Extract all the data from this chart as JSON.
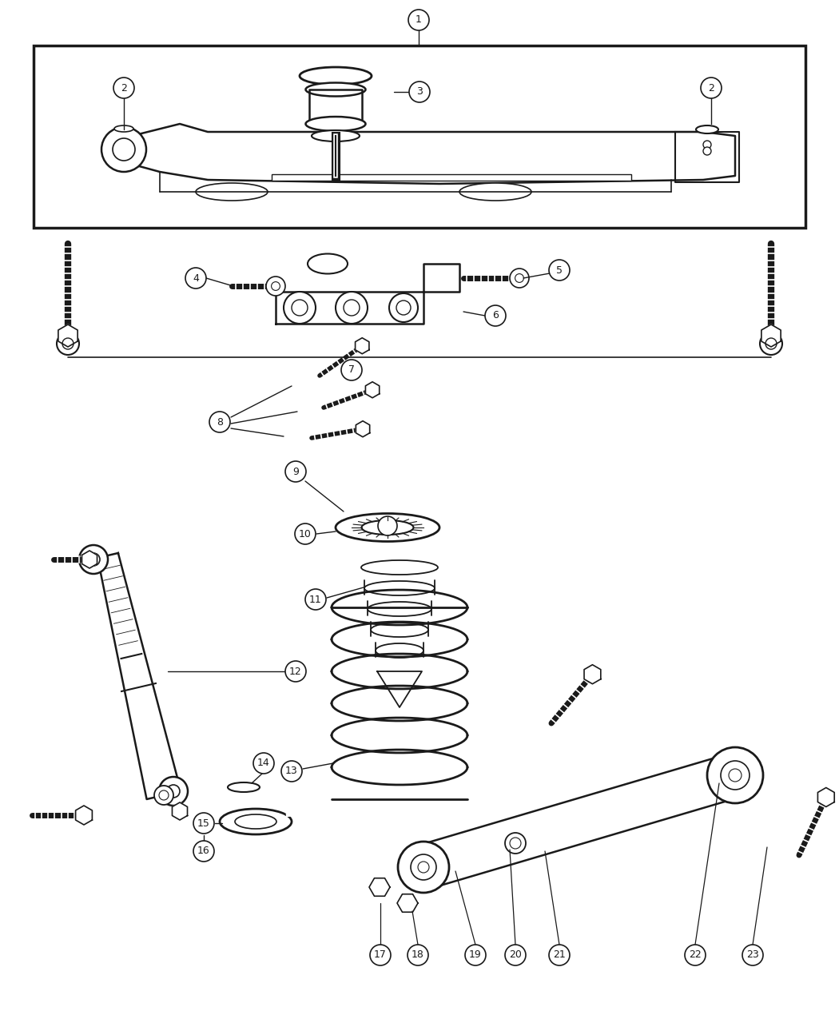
{
  "bg_color": "#ffffff",
  "line_color": "#1a1a1a",
  "fig_width": 10.5,
  "fig_height": 12.75,
  "dpi": 100
}
